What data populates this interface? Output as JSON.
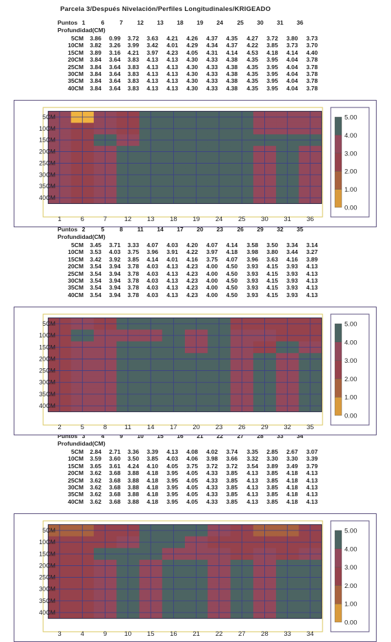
{
  "title": "Parcela 3/Después Nivelación/Perfiles Longitudinales/KRIGEADO",
  "chart_data": [
    {
      "type": "heatmap",
      "points_label": "Puntos",
      "depth_label": "Profundidad(CM)",
      "points": [
        "1",
        "6",
        "7",
        "12",
        "13",
        "18",
        "19",
        "24",
        "25",
        "30",
        "31",
        "36"
      ],
      "depths": [
        "5CM",
        "10CM",
        "15CM",
        "20CM",
        "25CM",
        "30CM",
        "35CM",
        "40CM"
      ],
      "values": [
        [
          3.86,
          0.99,
          3.72,
          3.63,
          4.21,
          4.26,
          4.37,
          4.35,
          4.27,
          3.72,
          3.8,
          3.73
        ],
        [
          3.82,
          3.26,
          3.99,
          3.42,
          4.01,
          4.29,
          4.34,
          4.37,
          4.22,
          3.85,
          3.73,
          3.7
        ],
        [
          3.89,
          3.16,
          4.21,
          3.97,
          4.23,
          4.05,
          4.31,
          4.14,
          4.53,
          4.18,
          4.14,
          4.4
        ],
        [
          3.84,
          3.64,
          3.83,
          4.13,
          4.13,
          4.3,
          4.33,
          4.38,
          4.35,
          3.95,
          4.04,
          3.78
        ],
        [
          3.84,
          3.64,
          3.83,
          4.13,
          4.13,
          4.3,
          4.33,
          4.38,
          4.35,
          3.95,
          4.04,
          3.78
        ],
        [
          3.84,
          3.64,
          3.83,
          4.13,
          4.13,
          4.3,
          4.33,
          4.38,
          4.35,
          3.95,
          4.04,
          3.78
        ],
        [
          3.84,
          3.64,
          3.83,
          4.13,
          4.13,
          4.3,
          4.33,
          4.38,
          4.35,
          3.95,
          4.04,
          3.78
        ],
        [
          3.84,
          3.64,
          3.83,
          4.13,
          4.13,
          4.3,
          4.33,
          4.38,
          4.35,
          3.95,
          4.04,
          3.78
        ]
      ],
      "legend": [
        "5.00",
        "4.00",
        "3.00",
        "2.00",
        "1.00",
        "0.00"
      ],
      "color_scale": [
        "#f0b340",
        "#d99a3d",
        "#a8623f",
        "#96424c",
        "#93485b",
        "#4c6462"
      ]
    },
    {
      "type": "heatmap",
      "points_label": "Puntos",
      "depth_label": "Profundidad(CM)",
      "points": [
        "2",
        "5",
        "8",
        "11",
        "14",
        "17",
        "20",
        "23",
        "26",
        "29",
        "32",
        "35"
      ],
      "depths": [
        "5CM",
        "10CM",
        "15CM",
        "20CM",
        "25CM",
        "30CM",
        "35CM",
        "40CM"
      ],
      "values": [
        [
          3.45,
          3.71,
          3.33,
          4.07,
          4.03,
          4.2,
          4.07,
          4.14,
          3.58,
          3.5,
          3.34,
          3.14
        ],
        [
          3.53,
          4.03,
          3.75,
          3.96,
          3.91,
          4.22,
          3.97,
          4.18,
          3.98,
          3.8,
          3.44,
          3.27
        ],
        [
          3.42,
          3.92,
          3.85,
          4.14,
          4.01,
          4.16,
          3.75,
          4.07,
          3.96,
          3.63,
          4.16,
          3.89
        ],
        [
          3.54,
          3.94,
          3.78,
          4.03,
          4.13,
          4.23,
          4.0,
          4.5,
          3.93,
          4.15,
          3.93,
          4.13
        ],
        [
          3.54,
          3.94,
          3.78,
          4.03,
          4.13,
          4.23,
          4.0,
          4.5,
          3.93,
          4.15,
          3.93,
          4.13
        ],
        [
          3.54,
          3.94,
          3.78,
          4.03,
          4.13,
          4.23,
          4.0,
          4.5,
          3.93,
          4.15,
          3.93,
          4.13
        ],
        [
          3.54,
          3.94,
          3.78,
          4.03,
          4.13,
          4.23,
          4.0,
          4.5,
          3.93,
          4.15,
          3.93,
          4.13
        ],
        [
          3.54,
          3.94,
          3.78,
          4.03,
          4.13,
          4.23,
          4.0,
          4.5,
          3.93,
          4.15,
          3.93,
          4.13
        ]
      ],
      "legend": [
        "5.00",
        "4.00",
        "3.00",
        "2.00",
        "1.00",
        "0.00"
      ],
      "color_scale": [
        "#f0b340",
        "#d99a3d",
        "#a8623f",
        "#96424c",
        "#93485b",
        "#4c6462"
      ]
    },
    {
      "type": "heatmap",
      "points_label": "Puntos",
      "depth_label": "Profundidad(CM)",
      "points": [
        "3",
        "4",
        "9",
        "10",
        "15",
        "16",
        "21",
        "22",
        "27",
        "28",
        "33",
        "34"
      ],
      "depths": [
        "5CM",
        "10CM",
        "15CM",
        "20CM",
        "25CM",
        "30CM",
        "35CM",
        "40CM"
      ],
      "values": [
        [
          2.84,
          2.71,
          3.36,
          3.39,
          4.13,
          4.08,
          4.02,
          3.74,
          3.35,
          2.85,
          2.67,
          3.07
        ],
        [
          3.59,
          3.6,
          3.5,
          3.85,
          4.03,
          4.06,
          3.98,
          3.66,
          3.32,
          3.3,
          3.3,
          3.39
        ],
        [
          3.65,
          3.61,
          4.24,
          4.1,
          4.05,
          3.75,
          3.72,
          3.72,
          3.54,
          3.89,
          3.49,
          3.79
        ],
        [
          3.62,
          3.68,
          3.88,
          4.18,
          3.95,
          4.05,
          4.33,
          3.85,
          4.13,
          3.85,
          4.18,
          4.13
        ],
        [
          3.62,
          3.68,
          3.88,
          4.18,
          3.95,
          4.05,
          4.33,
          3.85,
          4.13,
          3.85,
          4.18,
          4.13
        ],
        [
          3.62,
          3.68,
          3.88,
          4.18,
          3.95,
          4.05,
          4.33,
          3.85,
          4.13,
          3.85,
          4.18,
          4.13
        ],
        [
          3.62,
          3.68,
          3.88,
          4.18,
          3.95,
          4.05,
          4.33,
          3.85,
          4.13,
          3.85,
          4.18,
          4.13
        ],
        [
          3.62,
          3.68,
          3.88,
          4.18,
          3.95,
          4.05,
          4.33,
          3.85,
          4.13,
          3.85,
          4.18,
          4.13
        ]
      ],
      "legend": [
        "5.00",
        "4.00",
        "3.00",
        "2.00",
        "1.00",
        "0.00"
      ],
      "color_scale": [
        "#f0b340",
        "#d99a3d",
        "#a8623f",
        "#96424c",
        "#93485b",
        "#4c6462"
      ]
    }
  ]
}
